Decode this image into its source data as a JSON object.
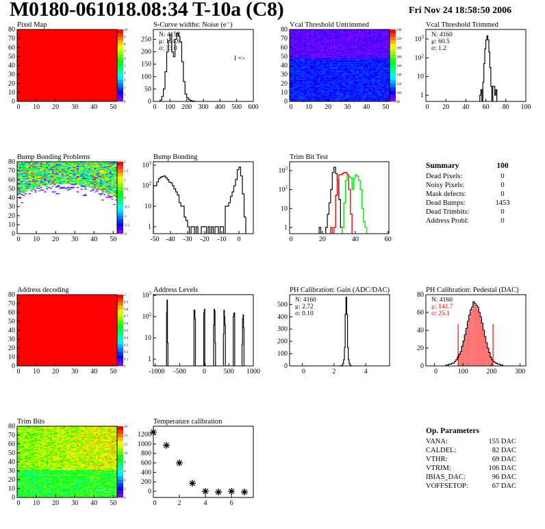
{
  "header": {
    "title": "M0180-061018.08:34 T-10a (C8)",
    "date": "Fri Nov 24 18:58:50 2006"
  },
  "summary": {
    "title": "Summary",
    "total": "100",
    "rows": [
      {
        "label": "Dead Pixels:",
        "value": "0"
      },
      {
        "label": "Noisy Pixels:",
        "value": "0"
      },
      {
        "label": "Mask defects:",
        "value": "0"
      },
      {
        "label": "Dead Bumps:",
        "value": "1453"
      },
      {
        "label": "Dead Trimbits:",
        "value": "0"
      },
      {
        "label": "Address Probl:",
        "value": "0"
      }
    ]
  },
  "op_parameters": {
    "title": "Op. Parameters",
    "rows": [
      {
        "label": "VANA:",
        "value": "155 DAC"
      },
      {
        "label": "CALDEL:",
        "value": "82 DAC"
      },
      {
        "label": "VTHR:",
        "value": "69 DAC"
      },
      {
        "label": "VTRIM:",
        "value": "106 DAC"
      },
      {
        "label": "IBIAS_DAC:",
        "value": "96 DAC"
      },
      {
        "label": "VOFFSETOP:",
        "value": "67 DAC"
      }
    ]
  },
  "colors": {
    "line": "#000000",
    "red": "#ff0000",
    "green": "#00ee00",
    "fit_fill": "#ff0000"
  },
  "chart_data": [
    {
      "id": "pixel-map",
      "type": "heatmap",
      "title": "Pixel Map",
      "xlim": [
        0,
        52
      ],
      "ylim": [
        0,
        80
      ],
      "xticks": [
        0,
        10,
        20,
        30,
        40,
        50
      ],
      "yticks": [
        0,
        10,
        20,
        30,
        40,
        50,
        60,
        70,
        80
      ],
      "zlim": [
        0,
        10
      ],
      "zticks": [
        "0",
        "1",
        "2",
        "3",
        "4",
        "5",
        "6",
        "7",
        "8",
        "9",
        "10"
      ],
      "uniform_value": 10
    },
    {
      "id": "s-curve",
      "type": "bar",
      "title": "S-Curve widths: Noise (e⁻)",
      "xlim": [
        0,
        600
      ],
      "ylim": [
        0,
        290
      ],
      "xticks": [
        0,
        100,
        200,
        300,
        400,
        500,
        600
      ],
      "yticks": [
        0,
        50,
        100,
        150,
        200,
        250
      ],
      "bin_width": 10,
      "bins": [
        [
          40,
          5
        ],
        [
          50,
          20
        ],
        [
          60,
          50
        ],
        [
          70,
          120
        ],
        [
          80,
          200
        ],
        [
          90,
          245
        ],
        [
          100,
          270
        ],
        [
          110,
          200
        ],
        [
          120,
          180
        ],
        [
          130,
          250
        ],
        [
          140,
          275
        ],
        [
          150,
          262
        ],
        [
          160,
          240
        ],
        [
          170,
          160
        ],
        [
          180,
          80
        ],
        [
          190,
          30
        ],
        [
          200,
          15
        ],
        [
          210,
          8
        ],
        [
          220,
          4
        ],
        [
          230,
          2
        ],
        [
          240,
          1
        ]
      ],
      "stats": [
        "N: 4159",
        "μ: 124.6",
        "σ: 33.0"
      ],
      "note": "I =>"
    },
    {
      "id": "vcal-untrimmed",
      "type": "heatmap",
      "title": "Vcal Threshold Untrimmed",
      "xlim": [
        0,
        52
      ],
      "ylim": [
        0,
        80
      ],
      "xticks": [
        0,
        10,
        20,
        30,
        40,
        50
      ],
      "yticks": [
        0,
        10,
        20,
        30,
        40,
        50,
        60,
        70,
        80
      ],
      "zlim": [
        80,
        250
      ],
      "zticks": [
        "80",
        "100",
        "120",
        "140",
        "160",
        "180",
        "200",
        "220",
        "240"
      ],
      "regions": [
        {
          "rows": [
            0,
            47
          ],
          "mean": 105,
          "spread": 8
        },
        {
          "rows": [
            48,
            80
          ],
          "mean": 90,
          "spread": 5
        }
      ]
    },
    {
      "id": "vcal-trimmed",
      "type": "bar",
      "title": "Vcal Threshold Trimmed",
      "log_y": true,
      "xlim": [
        0,
        100
      ],
      "ylim": [
        0.47,
        3250
      ],
      "xticks": [
        0,
        20,
        40,
        60,
        80,
        100
      ],
      "yticks": [
        1,
        10,
        100,
        1000
      ],
      "bin_width": 1,
      "bins": [
        [
          54,
          1
        ],
        [
          55,
          2
        ],
        [
          57,
          5
        ],
        [
          58,
          50
        ],
        [
          59,
          300
        ],
        [
          60,
          900
        ],
        [
          61,
          1500
        ],
        [
          62,
          900
        ],
        [
          63,
          200
        ],
        [
          64,
          30
        ],
        [
          65,
          3
        ],
        [
          67,
          3
        ],
        [
          68,
          3
        ],
        [
          69,
          1
        ],
        [
          70,
          2
        ]
      ],
      "stats": [
        "N: 4160",
        "μ: 60.5",
        "σ:  1.2"
      ]
    },
    {
      "id": "bump-map",
      "type": "heatmap",
      "title": "Bump Bonding Problems",
      "xlim": [
        0,
        52
      ],
      "ylim": [
        0,
        80
      ],
      "xticks": [
        0,
        10,
        20,
        30,
        40,
        50
      ],
      "yticks": [
        0,
        10,
        20,
        30,
        40,
        50,
        60,
        70,
        80
      ],
      "zlim": [
        -2,
        2
      ],
      "zticks": [
        "-2",
        "-1.5",
        "-1",
        "-0.5",
        "0",
        "0.5",
        "1",
        "1.5",
        "2"
      ]
    },
    {
      "id": "bump-hist",
      "type": "bar",
      "title": "Bump Bonding",
      "log_y": true,
      "xlim": [
        -50,
        8.4
      ],
      "ylim": [
        0.46,
        1470
      ],
      "xticks": [
        -50,
        -40,
        -30,
        -20,
        -10,
        0
      ],
      "yticks": [
        1,
        10,
        100,
        1000
      ],
      "bin_width": 1,
      "bins": [
        [
          -50,
          100
        ],
        [
          -49,
          100
        ],
        [
          -48,
          150
        ],
        [
          -47,
          220
        ],
        [
          -46,
          260
        ],
        [
          -45,
          280
        ],
        [
          -44,
          300
        ],
        [
          -43,
          250
        ],
        [
          -42,
          200
        ],
        [
          -41,
          150
        ],
        [
          -40,
          140
        ],
        [
          -39,
          100
        ],
        [
          -38,
          70
        ],
        [
          -37,
          50
        ],
        [
          -36,
          35
        ],
        [
          -35,
          15
        ],
        [
          -34,
          10
        ],
        [
          -33,
          10
        ],
        [
          -32,
          3
        ],
        [
          -31,
          2
        ],
        [
          -30,
          1
        ],
        [
          -28,
          1
        ],
        [
          -27,
          1
        ],
        [
          -25,
          1
        ],
        [
          -22,
          1
        ],
        [
          -21,
          1
        ],
        [
          -20,
          1
        ],
        [
          -18,
          1
        ],
        [
          -16,
          1
        ],
        [
          -14,
          1
        ],
        [
          -13,
          1
        ],
        [
          -11,
          1
        ],
        [
          -10,
          1
        ],
        [
          -8,
          10
        ],
        [
          -7,
          10
        ],
        [
          -6,
          15
        ],
        [
          -5,
          30
        ],
        [
          -4,
          50
        ],
        [
          -3,
          100
        ],
        [
          -2,
          200
        ],
        [
          -1,
          600
        ],
        [
          0,
          800
        ],
        [
          1,
          300
        ],
        [
          2,
          40
        ],
        [
          3,
          3
        ]
      ]
    },
    {
      "id": "trim-bit-test",
      "type": "bar",
      "title": "Trim Bit Test",
      "log_y": true,
      "xlim": [
        0,
        60.5
      ],
      "ylim": [
        0.47,
        2950
      ],
      "xticks": [
        0,
        20,
        40,
        60
      ],
      "yticks": [
        1,
        10,
        100,
        1000
      ],
      "bin_width": 1,
      "series": [
        {
          "color": "#000000",
          "bins": [
            [
              18,
              1
            ],
            [
              22,
              1
            ],
            [
              23,
              5
            ],
            [
              24,
              20
            ],
            [
              25,
              100
            ],
            [
              26,
              800
            ],
            [
              27,
              1500
            ],
            [
              28,
              700
            ],
            [
              29,
              300
            ],
            [
              30,
              30
            ],
            [
              31,
              1
            ]
          ]
        },
        {
          "color": "#ff0000",
          "bins": [
            [
              25,
              1
            ],
            [
              27,
              1
            ],
            [
              28,
              50
            ],
            [
              29,
              300
            ],
            [
              30,
              600
            ],
            [
              31,
              600
            ],
            [
              32,
              700
            ],
            [
              33,
              800
            ],
            [
              34,
              800
            ],
            [
              35,
              600
            ],
            [
              36,
              100
            ],
            [
              37,
              5
            ]
          ]
        },
        {
          "color": "#00ee00",
          "bins": [
            [
              32,
              1
            ],
            [
              33,
              20
            ],
            [
              34,
              300
            ],
            [
              35,
              500
            ],
            [
              36,
              500
            ],
            [
              37,
              420
            ],
            [
              38,
              100
            ],
            [
              39,
              400
            ],
            [
              40,
              600
            ],
            [
              41,
              500
            ],
            [
              42,
              300
            ],
            [
              43,
              100
            ],
            [
              44,
              10
            ],
            [
              45,
              2
            ],
            [
              46,
              1
            ]
          ]
        }
      ]
    },
    {
      "id": "address-map",
      "type": "heatmap",
      "title": "Address decoding",
      "xlim": [
        0,
        52
      ],
      "ylim": [
        0,
        80
      ],
      "xticks": [
        0,
        10,
        20,
        30,
        40,
        50
      ],
      "yticks": [
        0,
        10,
        20,
        30,
        40,
        50,
        60,
        70,
        80
      ],
      "zlim": [
        0,
        1
      ],
      "zticks": [
        "0",
        "0.1",
        "0.2",
        "0.3",
        "0.4",
        "0.5",
        "0.6",
        "0.7",
        "0.8",
        "0.9",
        "1"
      ],
      "uniform_value": 1
    },
    {
      "id": "address-levels",
      "type": "bar",
      "title": "Address Levels",
      "log_y": true,
      "xlim": [
        -1038,
        1000
      ],
      "ylim": [
        0.48,
        1080
      ],
      "xticks": [
        -1000,
        -500,
        0,
        500,
        1000
      ],
      "yticks": [
        1,
        10,
        100,
        1000
      ],
      "bin_width": 10,
      "bins": [
        [
          -770,
          150
        ],
        [
          -760,
          600
        ],
        [
          -750,
          6
        ],
        [
          -210,
          200
        ],
        [
          -200,
          200
        ],
        [
          -190,
          80
        ],
        [
          -10,
          150
        ],
        [
          0,
          220
        ],
        [
          10,
          0.6
        ],
        [
          190,
          40
        ],
        [
          200,
          220
        ],
        [
          210,
          180
        ],
        [
          220,
          6
        ],
        [
          390,
          15
        ],
        [
          400,
          200
        ],
        [
          410,
          100
        ],
        [
          420,
          40
        ],
        [
          590,
          100
        ],
        [
          600,
          140
        ],
        [
          610,
          150
        ],
        [
          770,
          5
        ],
        [
          780,
          80
        ],
        [
          790,
          120
        ],
        [
          800,
          30
        ]
      ]
    },
    {
      "id": "ph-gain",
      "type": "bar",
      "title": "PH Calibration: Gain (ADC/DAC)",
      "xlim": [
        -0.8,
        5.5
      ],
      "ylim": [
        0,
        580
      ],
      "xticks": [
        0,
        2,
        4
      ],
      "yticks": [
        0,
        100,
        200,
        300,
        400,
        500
      ],
      "bin_width": 0.05,
      "bins": [
        [
          2.4,
          2
        ],
        [
          2.5,
          5
        ],
        [
          2.55,
          20
        ],
        [
          2.6,
          50
        ],
        [
          2.65,
          150
        ],
        [
          2.7,
          420
        ],
        [
          2.75,
          560
        ],
        [
          2.8,
          420
        ],
        [
          2.85,
          150
        ],
        [
          2.9,
          50
        ],
        [
          2.95,
          20
        ],
        [
          3.0,
          5
        ],
        [
          3.05,
          2
        ]
      ],
      "stats": [
        "N: 4160",
        "μ: 2.72",
        "σ: 0.10"
      ]
    },
    {
      "id": "ph-pedestal",
      "type": "bar",
      "title": "PH Calibration: Pedestal (DAC)",
      "xlim": [
        -30,
        320
      ],
      "ylim": [
        0,
        80
      ],
      "xticks": [
        0,
        100,
        200,
        300
      ],
      "yticks": [
        0,
        20,
        40,
        60,
        80
      ],
      "bin_width": 5,
      "bins": [
        [
          40,
          1
        ],
        [
          45,
          1
        ],
        [
          50,
          2
        ],
        [
          55,
          2
        ],
        [
          60,
          3
        ],
        [
          65,
          3
        ],
        [
          70,
          5
        ],
        [
          75,
          7
        ],
        [
          80,
          10
        ],
        [
          85,
          13
        ],
        [
          90,
          16
        ],
        [
          95,
          22
        ],
        [
          100,
          28
        ],
        [
          105,
          35
        ],
        [
          110,
          42
        ],
        [
          115,
          50
        ],
        [
          120,
          57
        ],
        [
          125,
          63
        ],
        [
          130,
          66
        ],
        [
          135,
          72
        ],
        [
          140,
          70
        ],
        [
          145,
          68
        ],
        [
          150,
          66
        ],
        [
          155,
          60
        ],
        [
          160,
          55
        ],
        [
          165,
          48
        ],
        [
          170,
          40
        ],
        [
          175,
          33
        ],
        [
          180,
          26
        ],
        [
          185,
          20
        ],
        [
          190,
          15
        ],
        [
          195,
          10
        ],
        [
          200,
          7
        ],
        [
          205,
          5
        ],
        [
          210,
          4
        ],
        [
          215,
          3
        ],
        [
          220,
          2
        ],
        [
          225,
          2
        ],
        [
          230,
          1
        ],
        [
          235,
          1
        ]
      ],
      "fit_range": [
        83,
        205
      ],
      "fit_line_height": 47,
      "stats": [
        "N: 4160",
        "μ: 141.7",
        "σ: 25.1"
      ],
      "stats_colors": [
        "#000000",
        "#ff0000",
        "#ff0000"
      ]
    },
    {
      "id": "trim-bits",
      "type": "heatmap",
      "title": "Trim Bits",
      "xlim": [
        0,
        52
      ],
      "ylim": [
        0,
        80
      ],
      "xticks": [
        0,
        10,
        20,
        30,
        40,
        50
      ],
      "yticks": [
        0,
        10,
        20,
        30,
        40,
        50,
        60,
        70,
        80
      ],
      "zlim": [
        0,
        16
      ],
      "zticks": [
        "0",
        "2",
        "4",
        "6",
        "8",
        "10",
        "12",
        "14",
        "16"
      ],
      "regions": [
        {
          "rows": [
            0,
            30
          ],
          "mean": 8.5,
          "spread": 2
        },
        {
          "rows": [
            30,
            80
          ],
          "mean": 10.5,
          "spread": 2
        }
      ]
    },
    {
      "id": "temperature",
      "type": "scatter",
      "title": "Temperature calibration",
      "xlim": [
        0,
        7.68
      ],
      "ylim": [
        -130,
        1374
      ],
      "xticks": [
        0,
        2,
        4,
        6
      ],
      "yticks": [
        0,
        200,
        400,
        600,
        800,
        1000,
        1200
      ],
      "x": [
        0,
        1,
        2,
        3,
        4,
        5,
        6,
        7
      ],
      "y": [
        1250,
        970,
        600,
        170,
        0,
        -15,
        0,
        -15
      ]
    }
  ]
}
